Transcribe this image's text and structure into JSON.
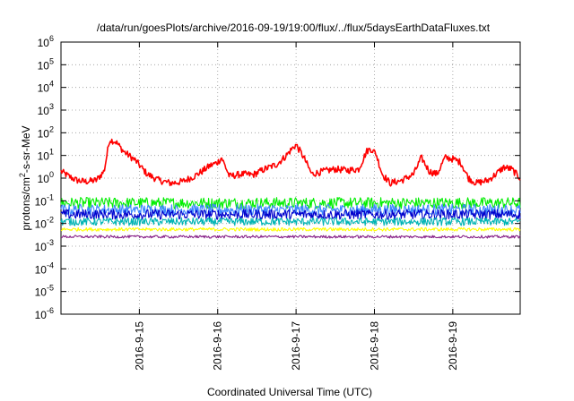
{
  "chart_data": {
    "type": "line",
    "title": "/data/run/goesPlots/archive/2016-09-19/19:00/flux/../flux/5daysEarthDataFluxes.txt",
    "xlabel": "Coordinated Universal Time (UTC)",
    "ylabel": {
      "base": "protons/cm",
      "sup": "2",
      "rest": "-s-sr-MeV"
    },
    "yscale": "log",
    "ylim_exp": [
      -6,
      6
    ],
    "y_tick_labels": [
      {
        "exp": -6,
        "base": "10",
        "sup": "-6"
      },
      {
        "exp": -5,
        "base": "10",
        "sup": "-5"
      },
      {
        "exp": -4,
        "base": "10",
        "sup": "-4"
      },
      {
        "exp": -3,
        "base": "10",
        "sup": "-3"
      },
      {
        "exp": -2,
        "base": "10",
        "sup": "-2"
      },
      {
        "exp": -1,
        "base": "10",
        "sup": "-1"
      },
      {
        "exp": 0,
        "base": "10",
        "sup": "0"
      },
      {
        "exp": 1,
        "base": "10",
        "sup": "1"
      },
      {
        "exp": 2,
        "base": "10",
        "sup": "2"
      },
      {
        "exp": 3,
        "base": "10",
        "sup": "3"
      },
      {
        "exp": 4,
        "base": "10",
        "sup": "4"
      },
      {
        "exp": 5,
        "base": "10",
        "sup": "5"
      },
      {
        "exp": 6,
        "base": "10",
        "sup": "6"
      }
    ],
    "xlim_days": [
      0,
      5.86
    ],
    "x_ticks": [
      {
        "day": 1,
        "label": "2016-9-15"
      },
      {
        "day": 2,
        "label": "2016-9-16"
      },
      {
        "day": 3,
        "label": "2016-9-17"
      },
      {
        "day": 4,
        "label": "2016-9-18"
      },
      {
        "day": 5,
        "label": "2016-9-19"
      }
    ],
    "grid": true,
    "series": [
      {
        "color": "#ff0000",
        "noise": 0.3,
        "x": [
          0,
          0.1,
          0.2,
          0.3,
          0.45,
          0.55,
          0.62,
          0.7,
          0.8,
          0.95,
          1.1,
          1.25,
          1.4,
          1.55,
          1.7,
          1.8,
          1.9,
          2.0,
          2.05,
          2.15,
          2.3,
          2.45,
          2.6,
          2.75,
          2.85,
          2.95,
          3.0,
          3.1,
          3.2,
          3.35,
          3.5,
          3.65,
          3.8,
          3.9,
          3.95,
          4.02,
          4.1,
          4.2,
          4.35,
          4.5,
          4.6,
          4.7,
          4.8,
          4.9,
          5.0,
          5.1,
          5.2,
          5.3,
          5.45,
          5.55,
          5.65,
          5.75,
          5.86
        ],
        "y": [
          2,
          1.2,
          0.8,
          0.7,
          0.8,
          2,
          50,
          40,
          15,
          6,
          1.5,
          0.8,
          0.6,
          0.7,
          1.2,
          2,
          3.5,
          5,
          8,
          1.2,
          1.5,
          1.4,
          2.5,
          4,
          8,
          20,
          30,
          8,
          1.5,
          2,
          2.5,
          2.2,
          2.5,
          15,
          20,
          12,
          1.5,
          0.6,
          0.8,
          1.5,
          8,
          2,
          1.5,
          8,
          7,
          5,
          1,
          0.6,
          0.8,
          1.5,
          3,
          2.5,
          1
        ]
      },
      {
        "color": "#00ee00",
        "noise": 0.5,
        "x": [
          0,
          5.86
        ],
        "y": [
          0.08,
          0.08
        ]
      },
      {
        "color": "#3c86ff",
        "noise": 0.5,
        "x": [
          0,
          5.86
        ],
        "y": [
          0.04,
          0.04
        ]
      },
      {
        "color": "#0000cc",
        "noise": 0.45,
        "x": [
          0,
          5.86
        ],
        "y": [
          0.025,
          0.025
        ]
      },
      {
        "color": "#00b4b4",
        "noise": 0.35,
        "x": [
          0,
          5.86
        ],
        "y": [
          0.012,
          0.012
        ]
      },
      {
        "color": "#ffff00",
        "noise": 0.15,
        "x": [
          0,
          5.86
        ],
        "y": [
          0.0055,
          0.0055
        ]
      },
      {
        "color": "#882288",
        "noise": 0.12,
        "x": [
          0,
          5.86
        ],
        "y": [
          0.0026,
          0.0026
        ]
      }
    ]
  }
}
